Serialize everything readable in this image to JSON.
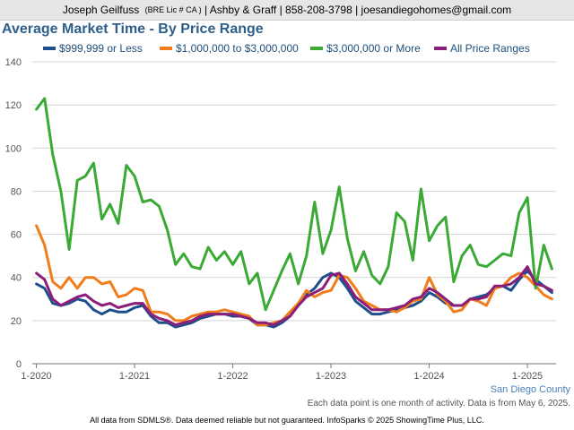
{
  "header": {
    "name": "Joseph Geilfuss",
    "license": "(BRE Lic # CA )",
    "rest": "| Ashby & Graff | 858-208-3798 | joesandiegohomes@gmail.com"
  },
  "region_label": "San Diego County",
  "note": "Each data point is one month of activity. Data is from May 6, 2025.",
  "disclaimer": "All data from SDMLS®. Data deemed reliable but not guaranteed. InfoSparks © 2025 ShowingTime Plus, LLC.",
  "chart_data": {
    "type": "line",
    "title": "Average Market Time - By Price Range",
    "xlabel": "",
    "ylabel": "",
    "ylim": [
      0,
      140
    ],
    "yticks": [
      0,
      20,
      40,
      60,
      80,
      100,
      120,
      140
    ],
    "xticks": [
      {
        "index": 0,
        "label": "1-2020"
      },
      {
        "index": 12,
        "label": "1-2021"
      },
      {
        "index": 24,
        "label": "1-2022"
      },
      {
        "index": 36,
        "label": "1-2023"
      },
      {
        "index": 48,
        "label": "1-2024"
      },
      {
        "index": 60,
        "label": "1-2025"
      }
    ],
    "x": [
      "1-2020",
      "2-2020",
      "3-2020",
      "4-2020",
      "5-2020",
      "6-2020",
      "7-2020",
      "8-2020",
      "9-2020",
      "10-2020",
      "11-2020",
      "12-2020",
      "1-2021",
      "2-2021",
      "3-2021",
      "4-2021",
      "5-2021",
      "6-2021",
      "7-2021",
      "8-2021",
      "9-2021",
      "10-2021",
      "11-2021",
      "12-2021",
      "1-2022",
      "2-2022",
      "3-2022",
      "4-2022",
      "5-2022",
      "6-2022",
      "7-2022",
      "8-2022",
      "9-2022",
      "10-2022",
      "11-2022",
      "12-2022",
      "1-2023",
      "2-2023",
      "3-2023",
      "4-2023",
      "5-2023",
      "6-2023",
      "7-2023",
      "8-2023",
      "9-2023",
      "10-2023",
      "11-2023",
      "12-2023",
      "1-2024",
      "2-2024",
      "3-2024",
      "4-2024",
      "5-2024",
      "6-2024",
      "7-2024",
      "8-2024",
      "9-2024",
      "10-2024",
      "11-2024",
      "12-2024",
      "1-2025",
      "2-2025",
      "3-2025",
      "4-2025"
    ],
    "grid": true,
    "legend": "top",
    "series": [
      {
        "name": "$999,999 or Less",
        "color": "#1f4e8c",
        "values": [
          37,
          35,
          28,
          27,
          28,
          30,
          29,
          25,
          23,
          25,
          24,
          24,
          26,
          27,
          22,
          19,
          19,
          17,
          18,
          19,
          21,
          22,
          23,
          23,
          22,
          22,
          21,
          18,
          18,
          17,
          19,
          22,
          27,
          32,
          35,
          40,
          42,
          40,
          35,
          29,
          26,
          23,
          23,
          24,
          25,
          26,
          27,
          29,
          33,
          31,
          28,
          27,
          27,
          30,
          31,
          32,
          35,
          36,
          34,
          39,
          43,
          39,
          36,
          33
        ]
      },
      {
        "name": "$1,000,000 to $3,000,000",
        "color": "#f07d1a",
        "values": [
          64,
          55,
          38,
          35,
          40,
          35,
          40,
          40,
          37,
          38,
          31,
          32,
          35,
          34,
          24,
          24,
          23,
          20,
          20,
          22,
          23,
          24,
          24,
          25,
          24,
          23,
          22,
          18,
          18,
          19,
          20,
          24,
          28,
          34,
          31,
          33,
          34,
          41,
          40,
          35,
          29,
          27,
          25,
          25,
          24,
          26,
          29,
          30,
          40,
          32,
          29,
          24,
          25,
          30,
          29,
          27,
          35,
          36,
          40,
          42,
          40,
          36,
          32,
          30
        ]
      },
      {
        "name": "$3,000,000 or More",
        "color": "#3aaa35",
        "values": [
          118,
          123,
          97,
          80,
          53,
          85,
          87,
          93,
          67,
          74,
          65,
          92,
          87,
          75,
          76,
          73,
          62,
          46,
          51,
          45,
          44,
          54,
          48,
          52,
          46,
          52,
          37,
          42,
          25,
          34,
          43,
          51,
          37,
          50,
          75,
          51,
          62,
          82,
          58,
          43,
          52,
          41,
          37,
          45,
          70,
          66,
          48,
          81,
          57,
          64,
          68,
          38,
          50,
          55,
          46,
          45,
          48,
          51,
          50,
          70,
          77,
          35,
          55,
          44
        ]
      },
      {
        "name": "All Price Ranges",
        "color": "#8b1e7a",
        "values": [
          42,
          39,
          30,
          27,
          29,
          31,
          32,
          29,
          27,
          28,
          26,
          27,
          28,
          28,
          23,
          21,
          20,
          18,
          19,
          20,
          22,
          23,
          23,
          23,
          23,
          22,
          21,
          19,
          19,
          18,
          20,
          22,
          27,
          31,
          33,
          35,
          41,
          42,
          37,
          31,
          28,
          25,
          25,
          25,
          26,
          27,
          30,
          31,
          35,
          33,
          30,
          27,
          27,
          30,
          30,
          31,
          36,
          36,
          37,
          40,
          45,
          37,
          36,
          34
        ]
      }
    ]
  }
}
